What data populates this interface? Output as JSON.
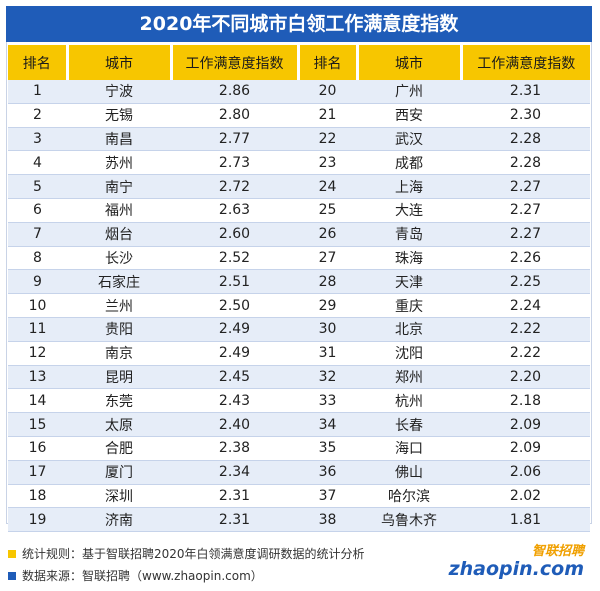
{
  "title": "2020年不同城市白领工作满意度指数",
  "colors": {
    "title_bg": "#1f5cb8",
    "header_bg": "#f7c600",
    "row_alt": "#e6edf8"
  },
  "chart_data": {
    "type": "table",
    "title": "2020年不同城市白领工作满意度指数",
    "columns": [
      "排名",
      "城市",
      "工作满意度指数",
      "排名",
      "城市",
      "工作满意度指数"
    ],
    "left_rows": [
      {
        "rank": "1",
        "city": "宁波",
        "index": "2.86"
      },
      {
        "rank": "2",
        "city": "无锡",
        "index": "2.80"
      },
      {
        "rank": "3",
        "city": "南昌",
        "index": "2.77"
      },
      {
        "rank": "4",
        "city": "苏州",
        "index": "2.73"
      },
      {
        "rank": "5",
        "city": "南宁",
        "index": "2.72"
      },
      {
        "rank": "6",
        "city": "福州",
        "index": "2.63"
      },
      {
        "rank": "7",
        "city": "烟台",
        "index": "2.60"
      },
      {
        "rank": "8",
        "city": "长沙",
        "index": "2.52"
      },
      {
        "rank": "9",
        "city": "石家庄",
        "index": "2.51"
      },
      {
        "rank": "10",
        "city": "兰州",
        "index": "2.50"
      },
      {
        "rank": "11",
        "city": "贵阳",
        "index": "2.49"
      },
      {
        "rank": "12",
        "city": "南京",
        "index": "2.49"
      },
      {
        "rank": "13",
        "city": "昆明",
        "index": "2.45"
      },
      {
        "rank": "14",
        "city": "东莞",
        "index": "2.43"
      },
      {
        "rank": "15",
        "city": "太原",
        "index": "2.40"
      },
      {
        "rank": "16",
        "city": "合肥",
        "index": "2.38"
      },
      {
        "rank": "17",
        "city": "厦门",
        "index": "2.34"
      },
      {
        "rank": "18",
        "city": "深圳",
        "index": "2.31"
      },
      {
        "rank": "19",
        "city": "济南",
        "index": "2.31"
      }
    ],
    "right_rows": [
      {
        "rank": "20",
        "city": "广州",
        "index": "2.31"
      },
      {
        "rank": "21",
        "city": "西安",
        "index": "2.30"
      },
      {
        "rank": "22",
        "city": "武汉",
        "index": "2.28"
      },
      {
        "rank": "23",
        "city": "成都",
        "index": "2.28"
      },
      {
        "rank": "24",
        "city": "上海",
        "index": "2.27"
      },
      {
        "rank": "25",
        "city": "大连",
        "index": "2.27"
      },
      {
        "rank": "26",
        "city": "青岛",
        "index": "2.27"
      },
      {
        "rank": "27",
        "city": "珠海",
        "index": "2.26"
      },
      {
        "rank": "28",
        "city": "天津",
        "index": "2.25"
      },
      {
        "rank": "29",
        "city": "重庆",
        "index": "2.24"
      },
      {
        "rank": "30",
        "city": "北京",
        "index": "2.22"
      },
      {
        "rank": "31",
        "city": "沈阳",
        "index": "2.22"
      },
      {
        "rank": "32",
        "city": "郑州",
        "index": "2.20"
      },
      {
        "rank": "33",
        "city": "杭州",
        "index": "2.18"
      },
      {
        "rank": "34",
        "city": "长春",
        "index": "2.09"
      },
      {
        "rank": "35",
        "city": "海口",
        "index": "2.09"
      },
      {
        "rank": "36",
        "city": "佛山",
        "index": "2.06"
      },
      {
        "rank": "37",
        "city": "哈尔滨",
        "index": "2.02"
      },
      {
        "rank": "38",
        "city": "乌鲁木齐",
        "index": "1.81"
      }
    ]
  },
  "footer": {
    "note1": "统计规则：基于智联招聘2020年白领满意度调研数据的统计分析",
    "note1_color": "#f7c600",
    "note2": "数据来源：智联招聘（www.zhaopin.com）",
    "note2_color": "#1f5cb8"
  },
  "logo": {
    "cn": "智联招聘",
    "en": "zhaopin.com"
  }
}
